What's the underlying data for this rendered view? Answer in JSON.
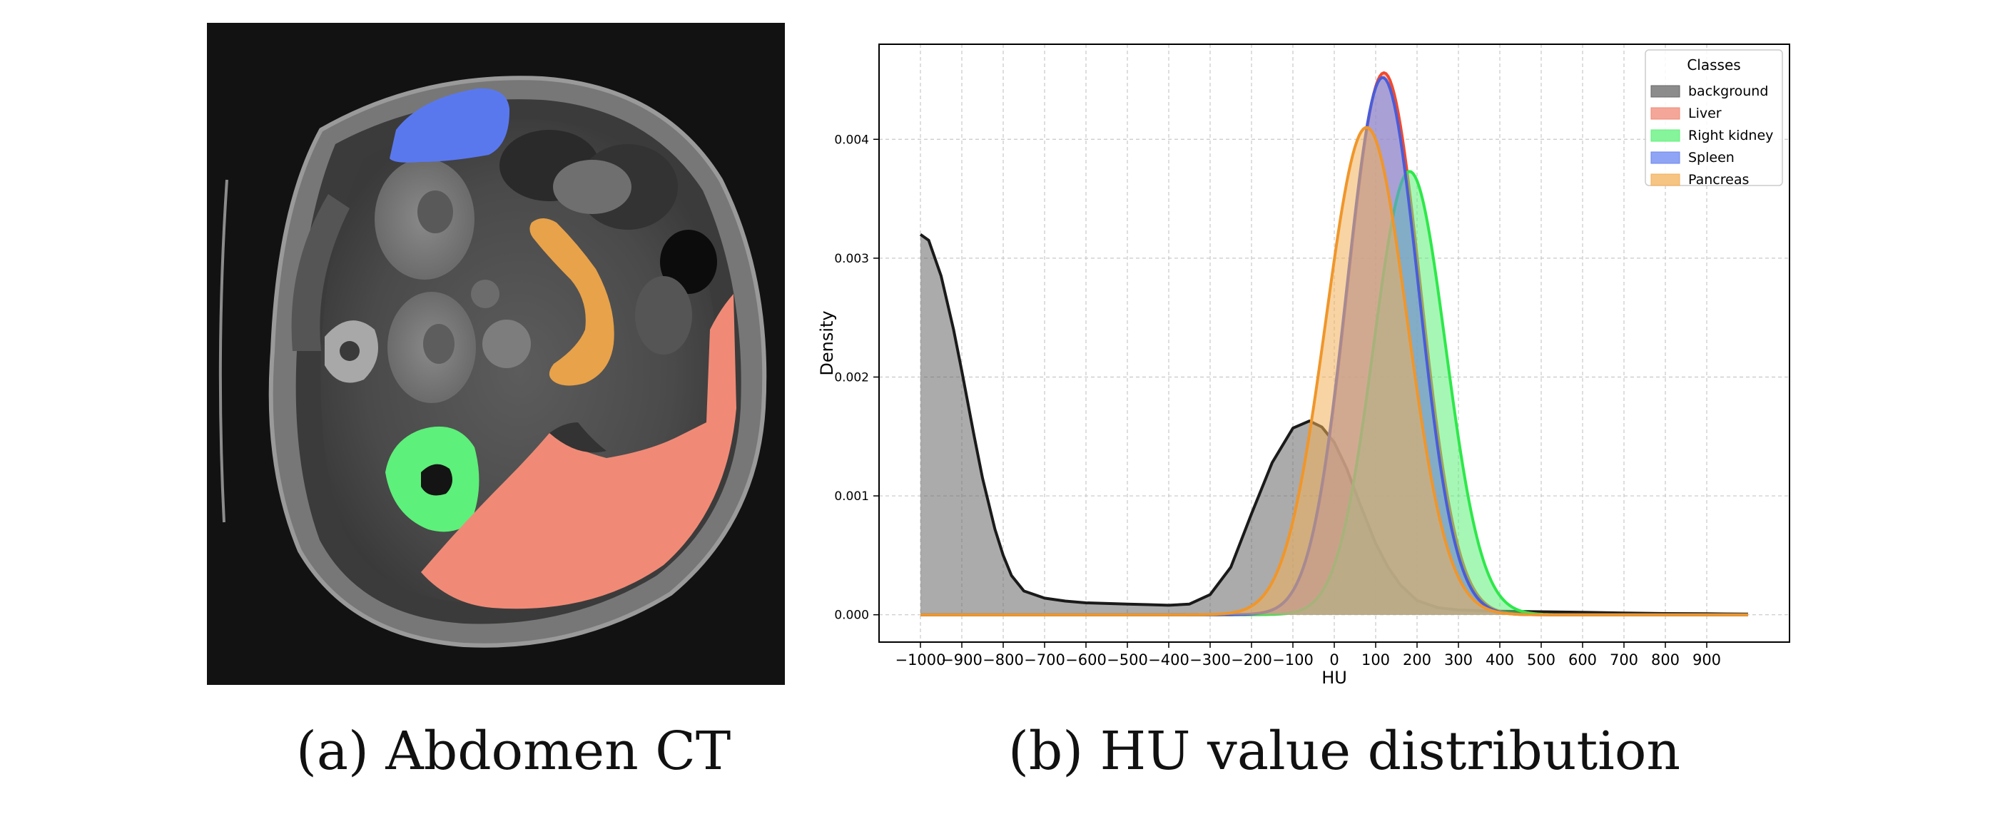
{
  "figure": {
    "caption_a": "(a) Abdomen CT",
    "caption_b": "(b) HU value distribution"
  },
  "ct_image": {
    "overlay_colors": {
      "Liver": "#f08a76",
      "Right kidney": "#5df07a",
      "Spleen": "#5a78ee",
      "Pancreas": "#e8a24a"
    }
  },
  "chart_data": {
    "type": "area",
    "xlabel": "HU",
    "ylabel": "Density",
    "xlim": [
      -1100,
      1100
    ],
    "ylim": [
      -0.00023,
      0.0048
    ],
    "xticks": [
      -1000,
      -900,
      -800,
      -700,
      -600,
      -500,
      -400,
      -300,
      -200,
      -100,
      0,
      100,
      200,
      300,
      400,
      500,
      600,
      700,
      800,
      900
    ],
    "yticks": [
      0.0,
      0.001,
      0.002,
      0.003,
      0.004
    ],
    "ytick_labels": [
      "0.000",
      "0.001",
      "0.002",
      "0.003",
      "0.004"
    ],
    "grid": true,
    "legend": {
      "title": "Classes",
      "placement": "top-right"
    },
    "series": [
      {
        "name": "background",
        "line_color": "#1a1a1a",
        "fill_color": "#666666",
        "x": [
          -1000,
          -980,
          -950,
          -920,
          -900,
          -870,
          -850,
          -820,
          -800,
          -780,
          -750,
          -700,
          -650,
          -600,
          -500,
          -450,
          -400,
          -350,
          -300,
          -250,
          -200,
          -150,
          -100,
          -60,
          -30,
          0,
          30,
          60,
          100,
          130,
          160,
          200,
          250,
          300,
          400,
          500,
          600,
          700,
          800,
          900,
          1000
        ],
        "y": [
          0.0032,
          0.00315,
          0.00285,
          0.0024,
          0.00205,
          0.0015,
          0.00115,
          0.00072,
          0.0005,
          0.00033,
          0.0002,
          0.00014,
          0.000115,
          0.0001,
          9e-05,
          8.5e-05,
          8e-05,
          9e-05,
          0.00017,
          0.0004,
          0.00085,
          0.00128,
          0.00157,
          0.00163,
          0.00158,
          0.00145,
          0.00123,
          0.00095,
          0.0006,
          0.0004,
          0.00025,
          0.00012,
          6e-05,
          4e-05,
          3e-05,
          2.5e-05,
          2e-05,
          1.5e-05,
          1e-05,
          8e-06,
          5e-06
        ]
      },
      {
        "name": "Liver",
        "line_color": "#f04a30",
        "fill_color": "#f08a76",
        "mu": 120,
        "sigma": 88,
        "peak": 0.00456,
        "x_range": [
          -1000,
          1000
        ]
      },
      {
        "name": "Right kidney",
        "line_color": "#2ee84a",
        "fill_color": "#5df07a",
        "mu": 182,
        "sigma": 87,
        "peak": 0.00373,
        "x_range": [
          -1000,
          1000
        ]
      },
      {
        "name": "Spleen",
        "line_color": "#4a5cd8",
        "fill_color": "#6a86f0",
        "mu": 117,
        "sigma": 87,
        "peak": 0.00452,
        "x_range": [
          -1000,
          1000
        ]
      },
      {
        "name": "Pancreas",
        "line_color": "#f0962a",
        "fill_color": "#f3b05a",
        "mu": 78,
        "sigma": 98,
        "peak": 0.0041,
        "x_range": [
          -1000,
          1000
        ]
      }
    ]
  }
}
